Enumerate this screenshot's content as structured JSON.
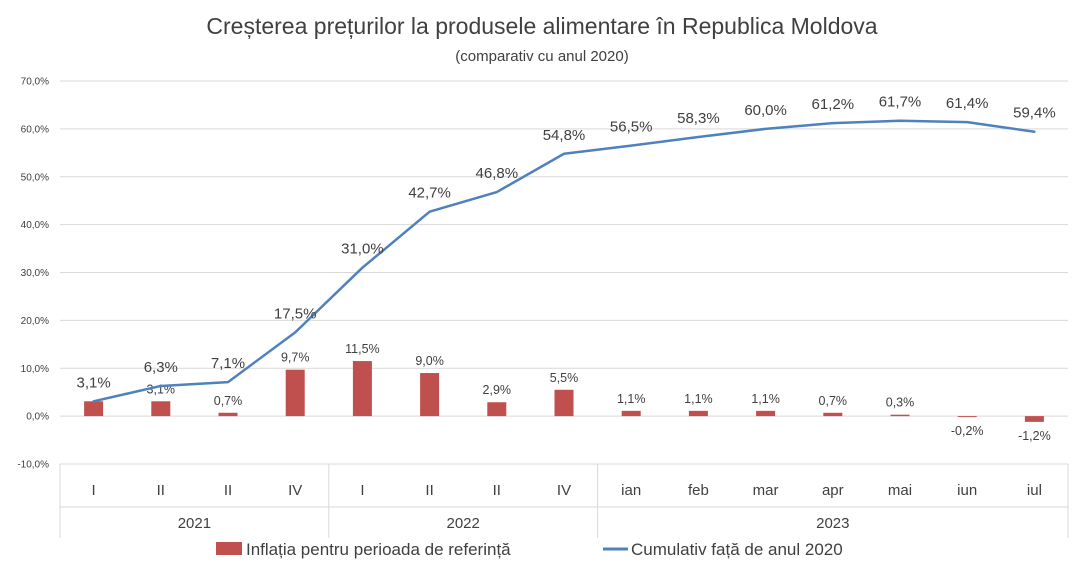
{
  "chart_data": {
    "type": "bar+line",
    "title": "Creșterea prețurilor la produsele alimentare în Republica Moldova",
    "subtitle": "(comparativ cu anul 2020)",
    "ylim": [
      -10,
      70
    ],
    "yticks": [
      -10,
      0,
      10,
      20,
      30,
      40,
      50,
      60,
      70
    ],
    "ytick_labels": [
      "-10,0%",
      "0,0%",
      "10,0%",
      "20,0%",
      "30,0%",
      "40,0%",
      "50,0%",
      "60,0%",
      "70,0%"
    ],
    "grid": true,
    "categories": [
      "I",
      "II",
      "II",
      "IV",
      "I",
      "II",
      "II",
      "IV",
      "ian",
      "feb",
      "mar",
      "apr",
      "mai",
      "iun",
      "iul"
    ],
    "groups": [
      {
        "label": "2021",
        "count": 4
      },
      {
        "label": "2022",
        "count": 4
      },
      {
        "label": "2023",
        "count": 7
      }
    ],
    "series": [
      {
        "name": "Inflația pentru perioada de referință",
        "kind": "bar",
        "color": "#c0504d",
        "values": [
          3.1,
          3.1,
          0.7,
          9.7,
          11.5,
          9.0,
          2.9,
          5.5,
          1.1,
          1.1,
          1.1,
          0.7,
          0.3,
          -0.2,
          -1.2
        ],
        "labels": [
          "",
          "3,1%",
          "0,7%",
          "9,7%",
          "11,5%",
          "9,0%",
          "2,9%",
          "5,5%",
          "1,1%",
          "1,1%",
          "1,1%",
          "0,7%",
          "0,3%",
          "-0,2%",
          "-1,2%"
        ]
      },
      {
        "name": "Cumulativ față de anul 2020",
        "kind": "line",
        "color": "#4f81bd",
        "values": [
          3.1,
          6.3,
          7.1,
          17.5,
          31.0,
          42.7,
          46.8,
          54.8,
          56.5,
          58.3,
          60.0,
          61.2,
          61.7,
          61.4,
          59.4
        ],
        "labels": [
          "3,1%",
          "6,3%",
          "7,1%",
          "17,5%",
          "31,0%",
          "42,7%",
          "46,8%",
          "54,8%",
          "56,5%",
          "58,3%",
          "60,0%",
          "61,2%",
          "61,7%",
          "61,4%",
          "59,4%"
        ]
      }
    ],
    "legend": "bottom"
  }
}
